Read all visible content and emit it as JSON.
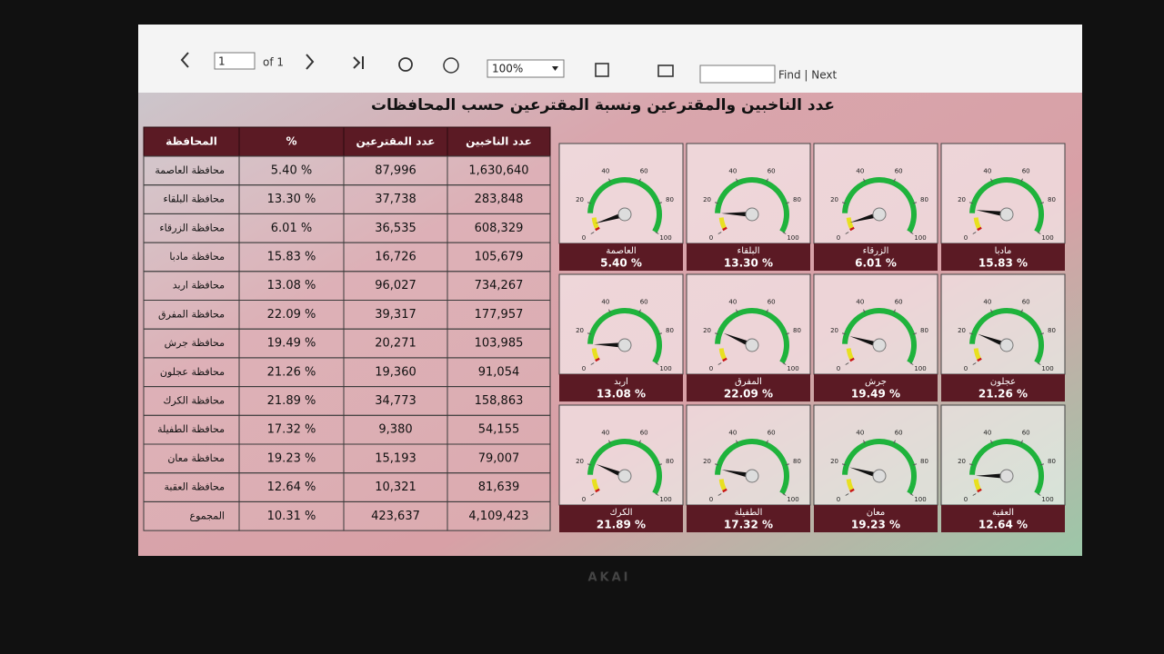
{
  "toolbar": {
    "page": "1",
    "page_of": "of 1",
    "zoom": "100%",
    "find": "Find | Next"
  },
  "title": "عدد الناخبين والمقترعين ونسبة المقترعين حسب المحافظات",
  "table": {
    "headers": [
      "المحافظة",
      "%",
      "عدد المقترعين",
      "عدد الناخبين"
    ],
    "rows": [
      [
        "محافظة العاصمة",
        "5.40 %",
        "87,996",
        "1,630,640"
      ],
      [
        "محافظة البلقاء",
        "13.30 %",
        "37,738",
        "283,848"
      ],
      [
        "محافظة الزرقاء",
        "6.01 %",
        "36,535",
        "608,329"
      ],
      [
        "محافظة مادبا",
        "15.83 %",
        "16,726",
        "105,679"
      ],
      [
        "محافظة اربد",
        "13.08 %",
        "96,027",
        "734,267"
      ],
      [
        "محافظة المفرق",
        "22.09 %",
        "39,317",
        "177,957"
      ],
      [
        "محافظة جرش",
        "19.49 %",
        "20,271",
        "103,985"
      ],
      [
        "محافظة عجلون",
        "21.26 %",
        "19,360",
        "91,054"
      ],
      [
        "محافظة الكرك",
        "21.89 %",
        "34,773",
        "158,863"
      ],
      [
        "محافظة الطفيلة",
        "17.32 %",
        "9,380",
        "54,155"
      ],
      [
        "محافظة معان",
        "19.23 %",
        "15,193",
        "79,007"
      ],
      [
        "محافظة العقبة",
        "12.64 %",
        "10,321",
        "81,639"
      ]
    ],
    "total": [
      "المجموع",
      "10.31 %",
      "423,637",
      "4,109,423"
    ]
  },
  "gauges": {
    "type": "gauge",
    "range": [
      0,
      100
    ],
    "ticks": [
      0,
      20,
      40,
      60,
      80,
      100
    ],
    "items": [
      {
        "name": "العاصمة",
        "value": 5.4,
        "value_label": "5.40 %"
      },
      {
        "name": "البلقاء",
        "value": 13.3,
        "value_label": "13.30 %"
      },
      {
        "name": "الزرقاء",
        "value": 6.01,
        "value_label": "6.01 %"
      },
      {
        "name": "مادبا",
        "value": 15.83,
        "value_label": "15.83 %"
      },
      {
        "name": "اربد",
        "value": 13.08,
        "value_label": "13.08 %"
      },
      {
        "name": "المفرق",
        "value": 22.09,
        "value_label": "22.09 %"
      },
      {
        "name": "جرش",
        "value": 19.49,
        "value_label": "19.49 %"
      },
      {
        "name": "عجلون",
        "value": 21.26,
        "value_label": "21.26 %"
      },
      {
        "name": "الكرك",
        "value": 21.89,
        "value_label": "21.89 %"
      },
      {
        "name": "الطفيلة",
        "value": 17.32,
        "value_label": "17.32 %"
      },
      {
        "name": "معان",
        "value": 19.23,
        "value_label": "19.23 %"
      },
      {
        "name": "العقبة",
        "value": 12.64,
        "value_label": "12.64 %"
      }
    ]
  },
  "monitor_brand": "AKAI"
}
